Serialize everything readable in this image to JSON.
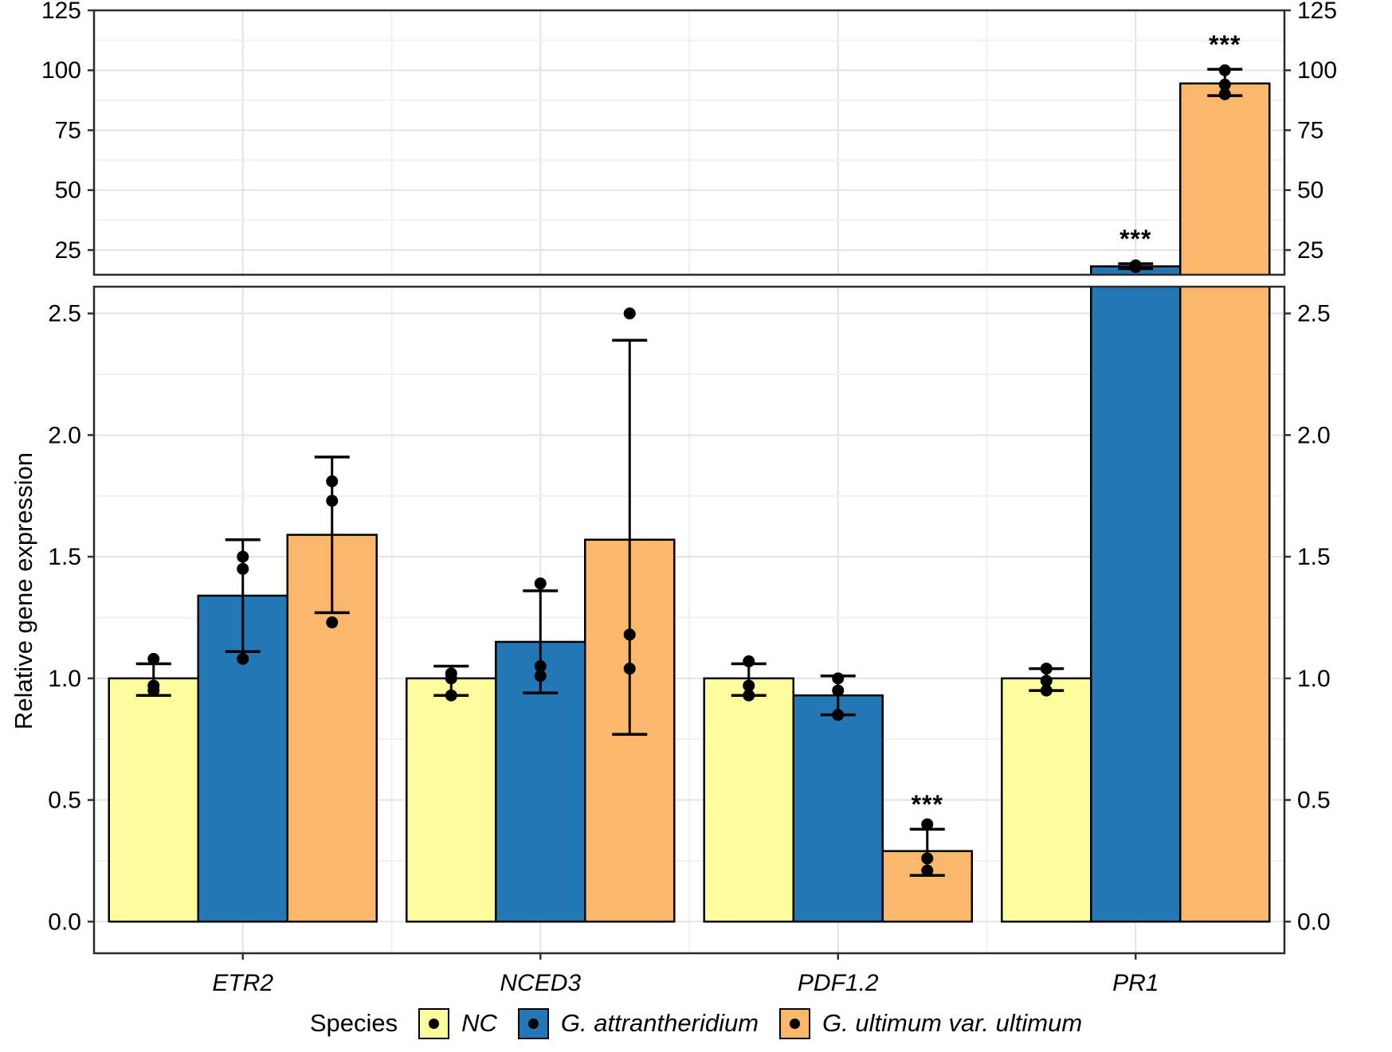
{
  "figure": {
    "ylabel": "Relative gene expression",
    "legend": {
      "title": "Species",
      "items": [
        {
          "label": "NC",
          "color": "#FDFD9D"
        },
        {
          "label": "G. attrantheridium",
          "color": "#2277B5"
        },
        {
          "label": "G. ultimum var. ultimum",
          "color": "#FBB76C"
        }
      ]
    }
  },
  "chart_data": {
    "type": "bar",
    "title": "",
    "xlabel": "",
    "ylabel": "Relative gene expression",
    "grid": true,
    "legend_title": "Species",
    "legend_position": "bottom",
    "categories": [
      "ETR2",
      "NCED3",
      "PDF1.2",
      "PR1"
    ],
    "category_style": "italic",
    "panels": [
      {
        "id": "top",
        "ylim": [
          14.7,
          125
        ],
        "yticks": [
          25,
          50,
          75,
          100,
          125
        ],
        "ytick_labels": [
          "25",
          "50",
          "75",
          "100",
          "125"
        ],
        "yticks_minor": [
          37.5,
          62.5,
          87.5,
          112.5
        ]
      },
      {
        "id": "bottom",
        "ylim": [
          -0.13,
          2.61
        ],
        "yticks": [
          0,
          0.5,
          1,
          1.5,
          2,
          2.5
        ],
        "ytick_labels": [
          "0.0",
          "0.5",
          "1.0",
          "1.5",
          "2.0",
          "2.5"
        ],
        "yticks_minor": [
          0.25,
          0.75,
          1.25,
          1.75,
          2.25
        ]
      }
    ],
    "series": [
      {
        "name": "NC",
        "color": "#FDFD9D",
        "values": [
          1.0,
          1.0,
          1.0,
          1.0
        ],
        "error_low": [
          0.93,
          0.93,
          0.93,
          0.95
        ],
        "error_high": [
          1.06,
          1.05,
          1.06,
          1.04
        ],
        "points": [
          [
            1.08,
            0.97,
            0.95
          ],
          [
            1.02,
            1.0,
            0.93
          ],
          [
            1.07,
            0.97,
            0.93
          ],
          [
            1.04,
            0.99,
            0.95
          ]
        ],
        "significance": [
          "",
          "",
          "",
          ""
        ]
      },
      {
        "name": "G. attrantheridium",
        "color": "#2277B5",
        "values": [
          1.34,
          1.15,
          0.93,
          18.2
        ],
        "error_low": [
          1.11,
          0.94,
          0.85,
          17.2
        ],
        "error_high": [
          1.57,
          1.36,
          1.01,
          19.3
        ],
        "points": [
          [
            1.5,
            1.45,
            1.08
          ],
          [
            1.39,
            1.05,
            1.01
          ],
          [
            1.0,
            0.95,
            0.85
          ],
          [
            18.6,
            18.3,
            17.9
          ]
        ],
        "significance": [
          "",
          "",
          "",
          "***"
        ]
      },
      {
        "name": "G. ultimum var. ultimum",
        "color": "#FBB76C",
        "values": [
          1.59,
          1.57,
          0.29,
          94.5
        ],
        "error_low": [
          1.27,
          0.77,
          0.19,
          89.4
        ],
        "error_high": [
          1.91,
          2.39,
          0.38,
          100.4
        ],
        "points": [
          [
            1.81,
            1.73,
            1.23
          ],
          [
            2.5,
            1.18,
            1.04
          ],
          [
            0.4,
            0.26,
            0.21
          ],
          [
            100.0,
            94.0,
            90.0
          ]
        ],
        "significance": [
          "",
          "",
          "***",
          "***"
        ]
      }
    ]
  }
}
